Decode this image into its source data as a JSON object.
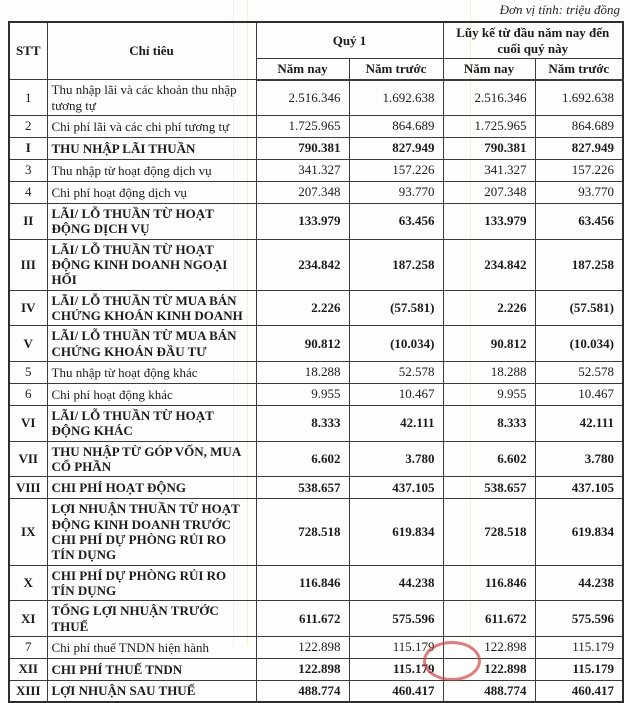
{
  "unit_note": "Đơn vị tính: triệu đồng",
  "colors": {
    "paper": "#fdfdfb",
    "border": "#3c3c3c",
    "text": "#1b1b1b",
    "stamp_red": "#cd3c3c"
  },
  "table": {
    "headers": {
      "stt": "STT",
      "item": "Chỉ tiêu",
      "group_q1": "Quý 1",
      "group_ytd": "Lũy kế từ đầu năm nay đến cuối quý này",
      "sub": [
        "Năm nay",
        "Năm trước",
        "Năm nay",
        "Năm trước"
      ]
    },
    "rows": [
      {
        "stt": "1",
        "bold": false,
        "label": "Thu nhập lãi và các khoản thu nhập tương tự",
        "values": [
          "2.516.346",
          "1.692.638",
          "2.516.346",
          "1.692.638"
        ]
      },
      {
        "stt": "2",
        "bold": false,
        "label": "Chi phí lãi và các chi phí tương tự",
        "values": [
          "1.725.965",
          "864.689",
          "1.725.965",
          "864.689"
        ]
      },
      {
        "stt": "I",
        "bold": true,
        "label": "THU NHẬP LÃI THUẦN",
        "values": [
          "790.381",
          "827.949",
          "790.381",
          "827.949"
        ]
      },
      {
        "stt": "3",
        "bold": false,
        "label": "Thu nhập từ hoạt động dịch vụ",
        "values": [
          "341.327",
          "157.226",
          "341.327",
          "157.226"
        ]
      },
      {
        "stt": "4",
        "bold": false,
        "label": "Chi phí hoạt động dịch vụ",
        "values": [
          "207.348",
          "93.770",
          "207.348",
          "93.770"
        ]
      },
      {
        "stt": "II",
        "bold": true,
        "label": "LÃI/ LỖ THUẦN TỪ HOẠT ĐỘNG DỊCH VỤ",
        "values": [
          "133.979",
          "63.456",
          "133.979",
          "63.456"
        ]
      },
      {
        "stt": "III",
        "bold": true,
        "label": "LÃI/ LỖ THUẦN TỪ HOẠT ĐỘNG KINH DOANH NGOẠI HỐI",
        "values": [
          "234.842",
          "187.258",
          "234.842",
          "187.258"
        ]
      },
      {
        "stt": "IV",
        "bold": true,
        "label": "LÃI/ LỖ THUẦN TỪ MUA BÁN CHỨNG KHOÁN KINH DOANH",
        "values": [
          "2.226",
          "(57.581)",
          "2.226",
          "(57.581)"
        ]
      },
      {
        "stt": "V",
        "bold": true,
        "label": "LÃI/ LỖ THUẦN TỪ MUA BÁN CHỨNG KHOÁN ĐẦU TƯ",
        "values": [
          "90.812",
          "(10.034)",
          "90.812",
          "(10.034)"
        ]
      },
      {
        "stt": "5",
        "bold": false,
        "label": "Thu nhập từ hoạt động khác",
        "values": [
          "18.288",
          "52.578",
          "18.288",
          "52.578"
        ]
      },
      {
        "stt": "6",
        "bold": false,
        "label": "Chi phí hoạt động khác",
        "values": [
          "9.955",
          "10.467",
          "9.955",
          "10.467"
        ]
      },
      {
        "stt": "VI",
        "bold": true,
        "label": "LÃI/ LỖ THUẦN TỪ HOẠT ĐỘNG KHÁC",
        "values": [
          "8.333",
          "42.111",
          "8.333",
          "42.111"
        ]
      },
      {
        "stt": "VII",
        "bold": true,
        "label": "THU NHẬP TỪ GÓP VỐN, MUA CỔ PHẦN",
        "values": [
          "6.602",
          "3.780",
          "6.602",
          "3.780"
        ]
      },
      {
        "stt": "VIII",
        "bold": true,
        "label": "CHI PHÍ HOẠT ĐỘNG",
        "values": [
          "538.657",
          "437.105",
          "538.657",
          "437.105"
        ]
      },
      {
        "stt": "IX",
        "bold": true,
        "label": "LỢI NHUẬN THUẦN TỪ HOẠT ĐỘNG KINH DOANH TRƯỚC CHI PHÍ DỰ PHÒNG RỦI RO TÍN DỤNG",
        "values": [
          "728.518",
          "619.834",
          "728.518",
          "619.834"
        ]
      },
      {
        "stt": "X",
        "bold": true,
        "label": "CHI PHÍ DỰ PHÒNG RỦI RO TÍN DỤNG",
        "values": [
          "116.846",
          "44.238",
          "116.846",
          "44.238"
        ]
      },
      {
        "stt": "XI",
        "bold": true,
        "label": "TỔNG LỢI NHUẬN TRƯỚC THUẾ",
        "values": [
          "611.672",
          "575.596",
          "611.672",
          "575.596"
        ]
      },
      {
        "stt": "7",
        "bold": false,
        "label": "Chi phí thuế TNDN hiện hành",
        "values": [
          "122.898",
          "115.179",
          "122.898",
          "115.179"
        ]
      },
      {
        "stt": "XII",
        "bold": true,
        "label": "CHI PHÍ THUẾ TNDN",
        "values": [
          "122.898",
          "115.179",
          "122.898",
          "115.179"
        ]
      },
      {
        "stt": "XIII",
        "bold": true,
        "label": "LỢI NHUẬN SAU THUẾ",
        "values": [
          "488.774",
          "460.417",
          "488.774",
          "460.417"
        ]
      }
    ]
  }
}
